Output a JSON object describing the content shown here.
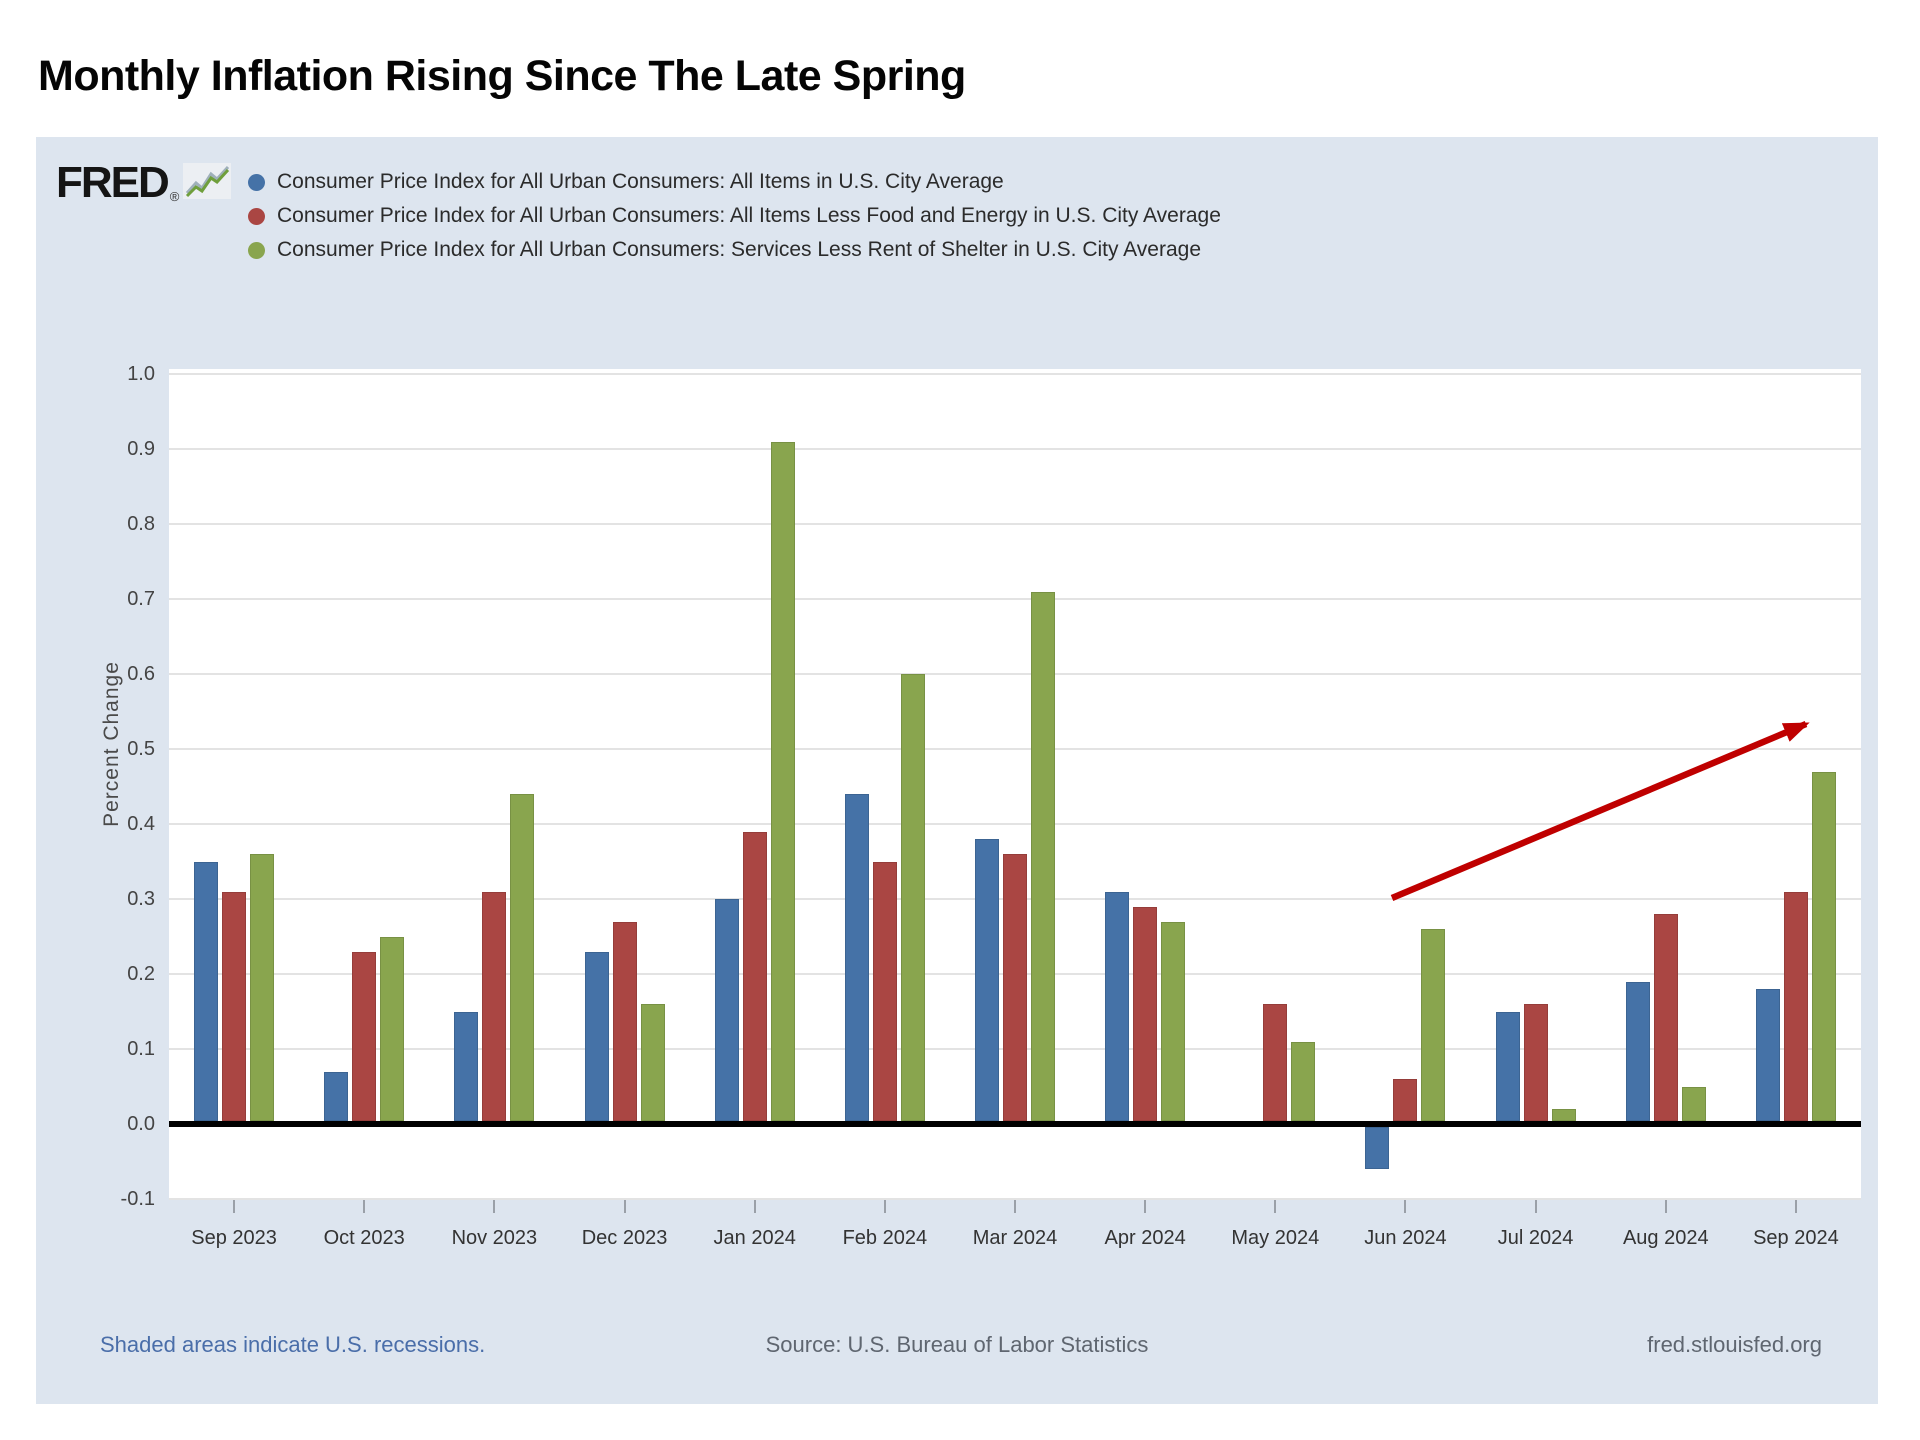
{
  "page": {
    "title": "Monthly Inflation Rising Since The Late Spring"
  },
  "logo": {
    "text": "FRED",
    "reg": "®",
    "squiggle_icon": "line-chart-squiggle"
  },
  "footer": {
    "recession_note": "Shaded areas indicate U.S. recessions.",
    "source": "Source: U.S. Bureau of Labor Statistics",
    "site": "fred.stlouisfed.org"
  },
  "colors": {
    "chart_background": "#dde5ef",
    "plot_background": "#ffffff",
    "gridline": "#e3e3e3",
    "zero_line": "#000000",
    "series_blue": "#4572a7",
    "series_red": "#aa4643",
    "series_green": "#89a54e",
    "arrow_red": "#bf0000",
    "link_blue": "#4a6ea9"
  },
  "chart_data": {
    "type": "bar",
    "title": "",
    "xlabel": "",
    "ylabel": "Percent Change",
    "ylim": [
      -0.102,
      1.008
    ],
    "grid": true,
    "legend_position": "top-left",
    "y_ticks": [
      "1.0",
      "0.9",
      "0.8",
      "0.7",
      "0.6",
      "0.5",
      "0.4",
      "0.3",
      "0.2",
      "0.1",
      "0.0",
      "-0.1"
    ],
    "y_tick_values": [
      1.0,
      0.9,
      0.8,
      0.7,
      0.6,
      0.5,
      0.4,
      0.3,
      0.2,
      0.1,
      0.0,
      -0.1
    ],
    "categories": [
      "Sep 2023",
      "Oct 2023",
      "Nov 2023",
      "Dec 2023",
      "Jan 2024",
      "Feb 2024",
      "Mar 2024",
      "Apr 2024",
      "May 2024",
      "Jun 2024",
      "Jul 2024",
      "Aug 2024",
      "Sep 2024"
    ],
    "series": [
      {
        "name": "Consumer Price Index for All Urban Consumers: All Items in U.S. City Average",
        "color": "#4572a7",
        "values": [
          0.35,
          0.07,
          0.15,
          0.23,
          0.3,
          0.44,
          0.38,
          0.31,
          0.0,
          -0.06,
          0.15,
          0.19,
          0.18
        ]
      },
      {
        "name": "Consumer Price Index for All Urban Consumers: All Items Less Food and Energy in U.S. City Average",
        "color": "#aa4643",
        "values": [
          0.31,
          0.23,
          0.31,
          0.27,
          0.39,
          0.35,
          0.36,
          0.29,
          0.16,
          0.06,
          0.16,
          0.28,
          0.31
        ]
      },
      {
        "name": "Consumer Price Index for All Urban Consumers: Services Less Rent of Shelter in U.S. City Average",
        "color": "#89a54e",
        "values": [
          0.36,
          0.25,
          0.44,
          0.16,
          0.91,
          0.6,
          0.71,
          0.27,
          0.11,
          0.26,
          0.02,
          0.05,
          0.47
        ]
      }
    ],
    "annotation": {
      "type": "trend-arrow",
      "description": "red arrow rising from above Jun 2024 toward upper right at Sep 2024",
      "color": "#bf0000"
    }
  }
}
